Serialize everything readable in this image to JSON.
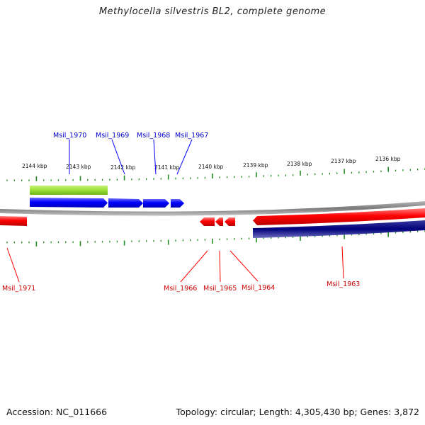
{
  "title": "Methylocella silvestris BL2, complete genome",
  "footer": {
    "accession": "Accession: NC_011666",
    "summary": "Topology: circular; Length: 4,305,430 bp; Genes: 3,872"
  },
  "colors": {
    "forward_gene": "#0000ff",
    "reverse_gene": "#ff0000",
    "highlight": "#99e034",
    "dark_band": "#00007a",
    "tick": "#228b22",
    "backbone": "#808080"
  },
  "scale_ticks": [
    "2144 kbp",
    "2143 kbp",
    "2142 kbp",
    "2141 kbp",
    "2140 kbp",
    "2139 kbp",
    "2138 kbp",
    "2137 kbp",
    "2136 kbp"
  ],
  "forward_gene_labels": [
    "Msil_1970",
    "Msil_1969",
    "Msil_1968",
    "Msil_1967"
  ],
  "reverse_gene_labels": [
    "Msil_1971",
    "Msil_1966",
    "Msil_1965",
    "Msil_1964",
    "Msil_1963"
  ]
}
